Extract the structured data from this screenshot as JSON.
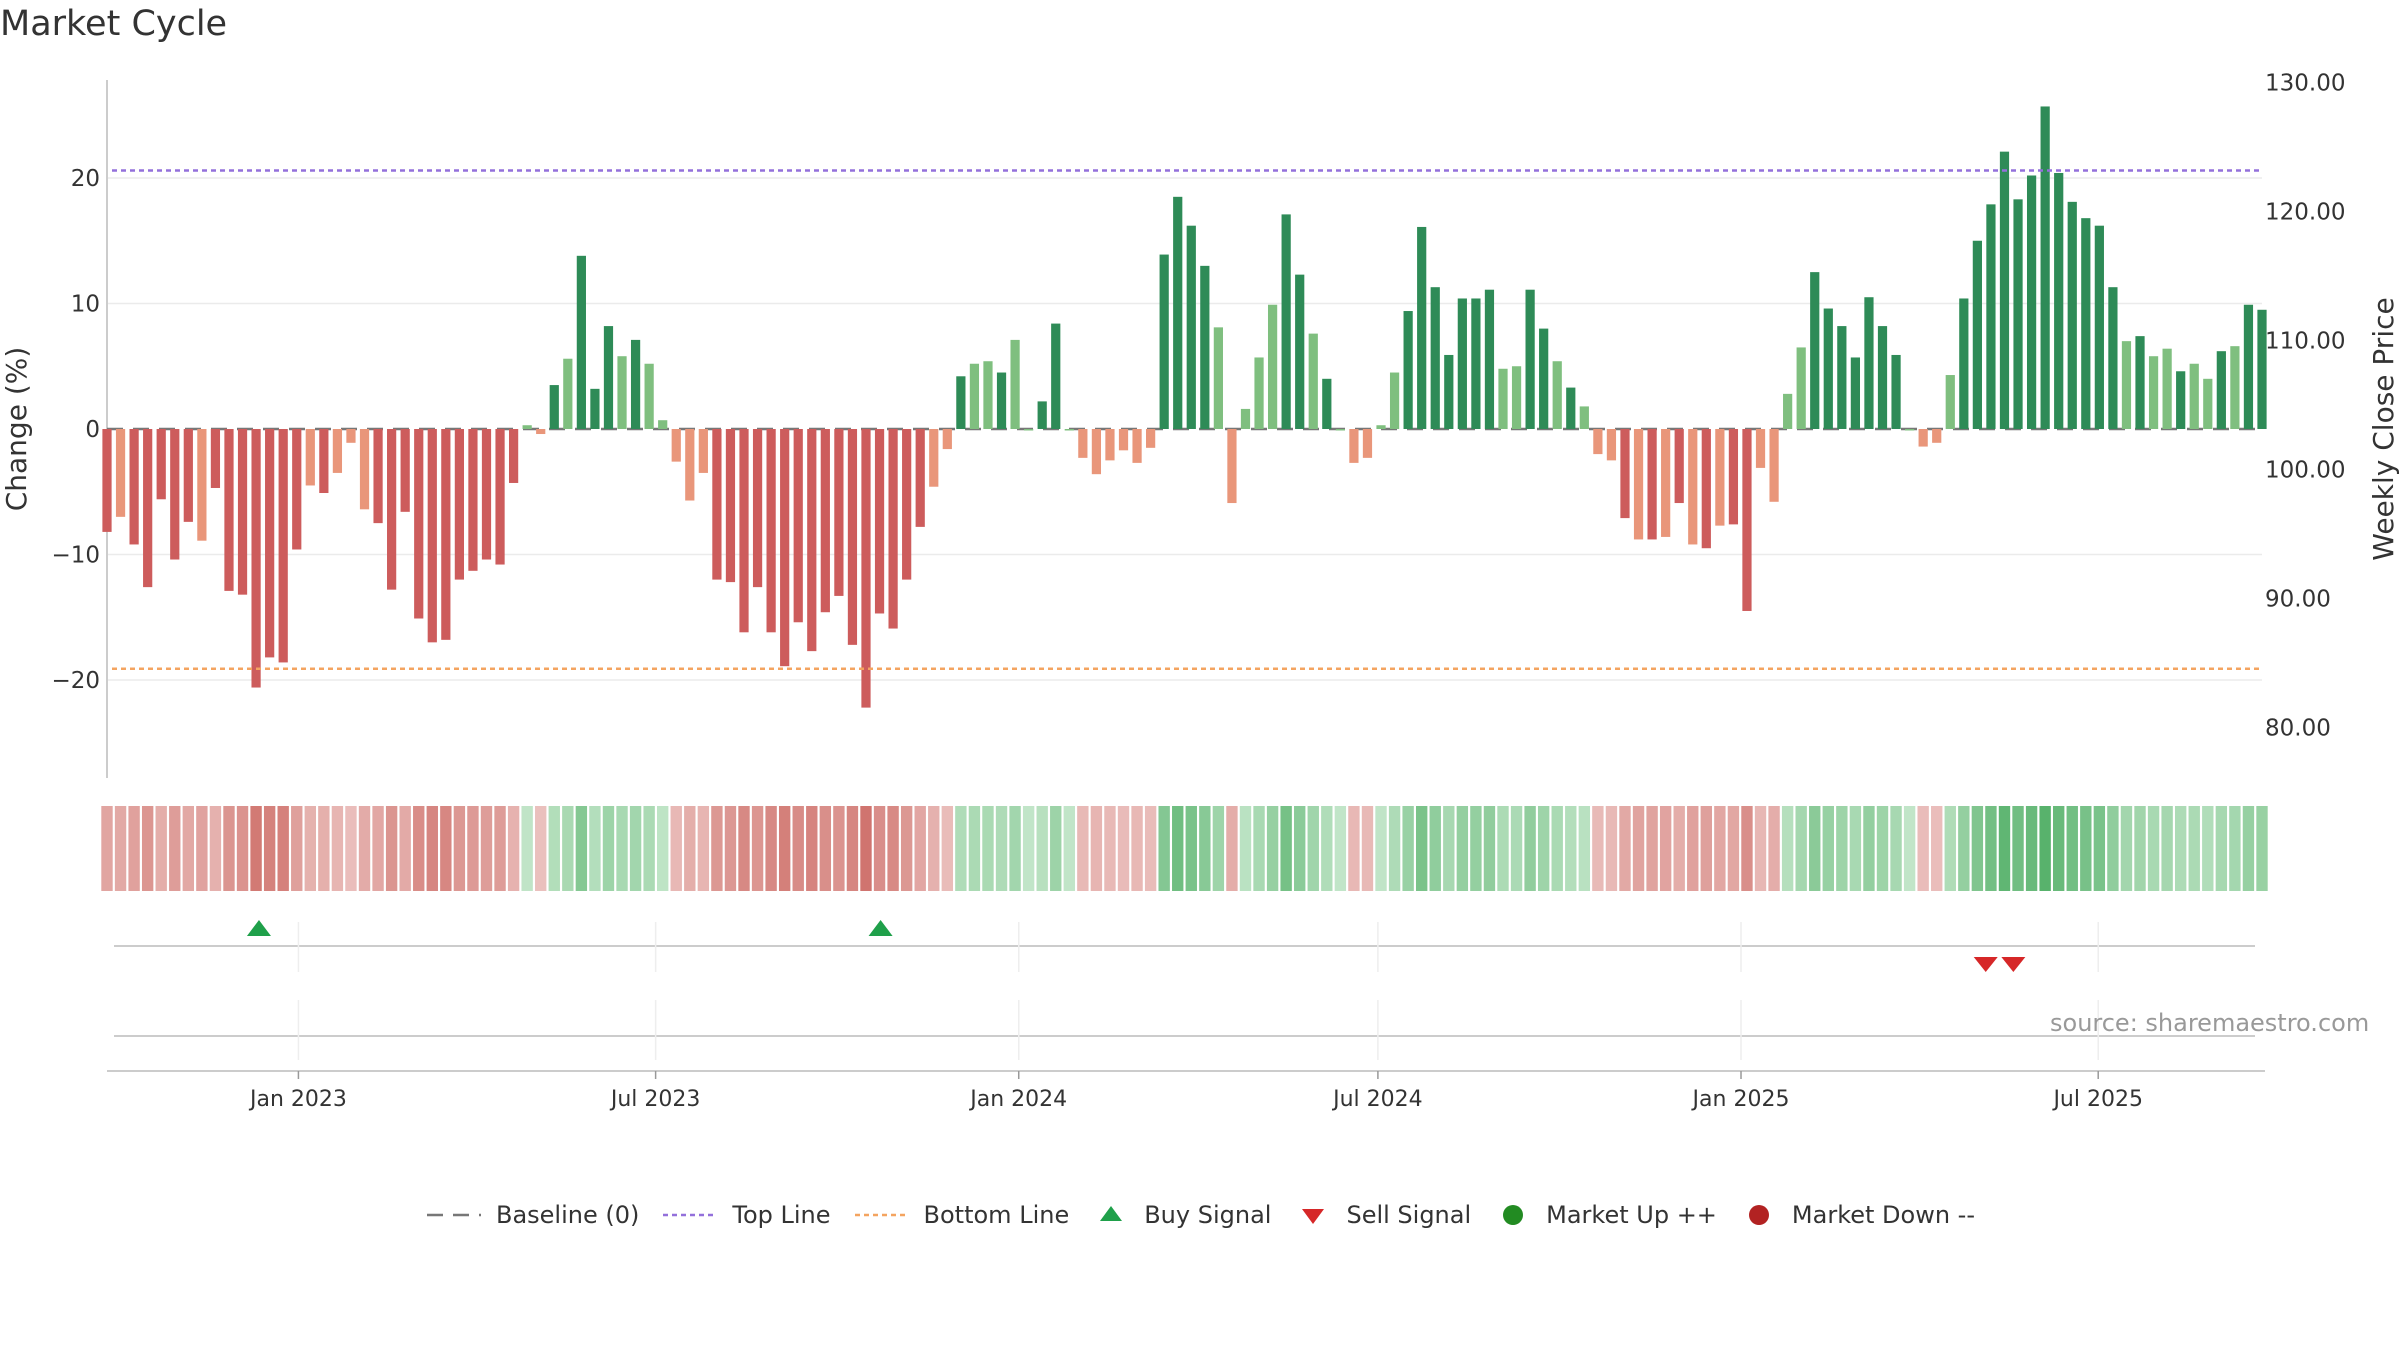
{
  "chart_data": {
    "type": "bar",
    "title": "Market Cycle",
    "ylabel_left": "Change (%)",
    "ylabel_right": "Weekly Close Price",
    "ylim_left": [
      -28,
      28
    ],
    "ylim_right": [
      75,
      130
    ],
    "yticks_left": [
      -20,
      -10,
      0,
      10,
      20
    ],
    "yticks_left_labels": [
      "−20",
      "−10",
      "0",
      "10",
      "20"
    ],
    "yticks_right": [
      80,
      90,
      100,
      110,
      120,
      130
    ],
    "yticks_right_labels": [
      "80.00",
      "90.00",
      "100.00",
      "110.00",
      "120.00",
      "130.00"
    ],
    "top_line": 20.6,
    "bottom_line": -19.1,
    "x_start": "2022-09-26",
    "x_end": "2025-09-22",
    "xtick_labels": [
      {
        "date": "2023-01-01",
        "label": "Jan 2023"
      },
      {
        "date": "2023-07-01",
        "label": "Jul 2023"
      },
      {
        "date": "2024-01-01",
        "label": "Jan 2024"
      },
      {
        "date": "2024-07-01",
        "label": "Jul 2024"
      },
      {
        "date": "2025-01-01",
        "label": "Jan 2025"
      },
      {
        "date": "2025-07-01",
        "label": "Jul 2025"
      }
    ],
    "values": [
      -8.2,
      -7.0,
      -9.2,
      -12.6,
      -5.6,
      -10.4,
      -7.4,
      -8.9,
      -4.7,
      -12.9,
      -13.2,
      -20.6,
      -18.2,
      -18.6,
      -9.6,
      -4.5,
      -5.1,
      -3.5,
      -1.1,
      -6.4,
      -7.5,
      -12.8,
      -6.6,
      -15.1,
      -17.0,
      -16.8,
      -12.0,
      -11.3,
      -10.4,
      -10.8,
      -4.3,
      0.3,
      -0.4,
      3.5,
      5.6,
      13.8,
      3.2,
      8.2,
      5.8,
      7.1,
      5.2,
      0.7,
      -2.6,
      -5.7,
      -3.5,
      -12.0,
      -12.2,
      -16.2,
      -12.6,
      -16.2,
      -18.9,
      -15.4,
      -17.7,
      -14.6,
      -13.3,
      -17.2,
      -22.2,
      -14.7,
      -15.9,
      -12.0,
      -7.8,
      -4.6,
      -1.6,
      4.2,
      5.2,
      5.4,
      4.5,
      7.1,
      0.0,
      2.2,
      8.4,
      0.0,
      -2.3,
      -3.6,
      -2.5,
      -1.7,
      -2.7,
      -1.5,
      13.9,
      18.5,
      16.2,
      13.0,
      8.1,
      -5.9,
      1.6,
      5.7,
      9.9,
      17.1,
      12.3,
      7.6,
      4.0,
      0.0,
      -2.7,
      -2.3,
      0.3,
      4.5,
      9.4,
      16.1,
      11.3,
      5.9,
      10.4,
      10.4,
      11.1,
      4.8,
      5.0,
      11.1,
      8.0,
      5.4,
      3.3,
      1.8,
      -2.0,
      -2.5,
      -7.1,
      -8.8,
      -8.8,
      -8.6,
      -5.9,
      -9.2,
      -9.5,
      -7.7,
      -7.6,
      -14.5,
      -3.1,
      -5.8,
      2.8,
      6.5,
      12.5,
      9.6,
      8.2,
      5.7,
      10.5,
      8.2,
      5.9,
      0.0,
      -1.4,
      -1.1,
      4.3,
      10.4,
      15.0,
      17.9,
      22.1,
      18.3,
      20.2,
      25.7,
      20.4,
      18.1,
      16.8,
      16.2,
      11.3,
      7.0,
      7.4,
      5.8,
      6.4,
      4.6,
      5.2,
      4.0,
      6.2,
      6.6,
      9.9,
      9.5
    ],
    "signals": [
      {
        "type": "buy",
        "date": "2022-12-12"
      },
      {
        "type": "buy",
        "date": "2023-10-23"
      },
      {
        "type": "sell",
        "date": "2025-05-05"
      },
      {
        "type": "sell",
        "date": "2025-05-19"
      }
    ],
    "legend": [
      {
        "key": "baseline",
        "label": "Baseline (0)"
      },
      {
        "key": "top",
        "label": "Top Line"
      },
      {
        "key": "bottom",
        "label": "Bottom Line"
      },
      {
        "key": "buy",
        "label": "Buy Signal"
      },
      {
        "key": "sell",
        "label": "Sell Signal"
      },
      {
        "key": "up",
        "label": "Market Up ++"
      },
      {
        "key": "down",
        "label": "Market Down --"
      }
    ],
    "colors": {
      "pos_strong": "#2e8b57",
      "pos_light": "#7fbf7f",
      "neg_strong": "#cd5c5c",
      "neg_light": "#e9967a",
      "top_line": "#9370db",
      "bottom_line": "#f4a460",
      "buy": "#1fa04a",
      "sell": "#d62728",
      "up": "#228b22",
      "down": "#b22222",
      "baseline": "#777777"
    }
  },
  "source_text": "source: sharemaestro.com"
}
